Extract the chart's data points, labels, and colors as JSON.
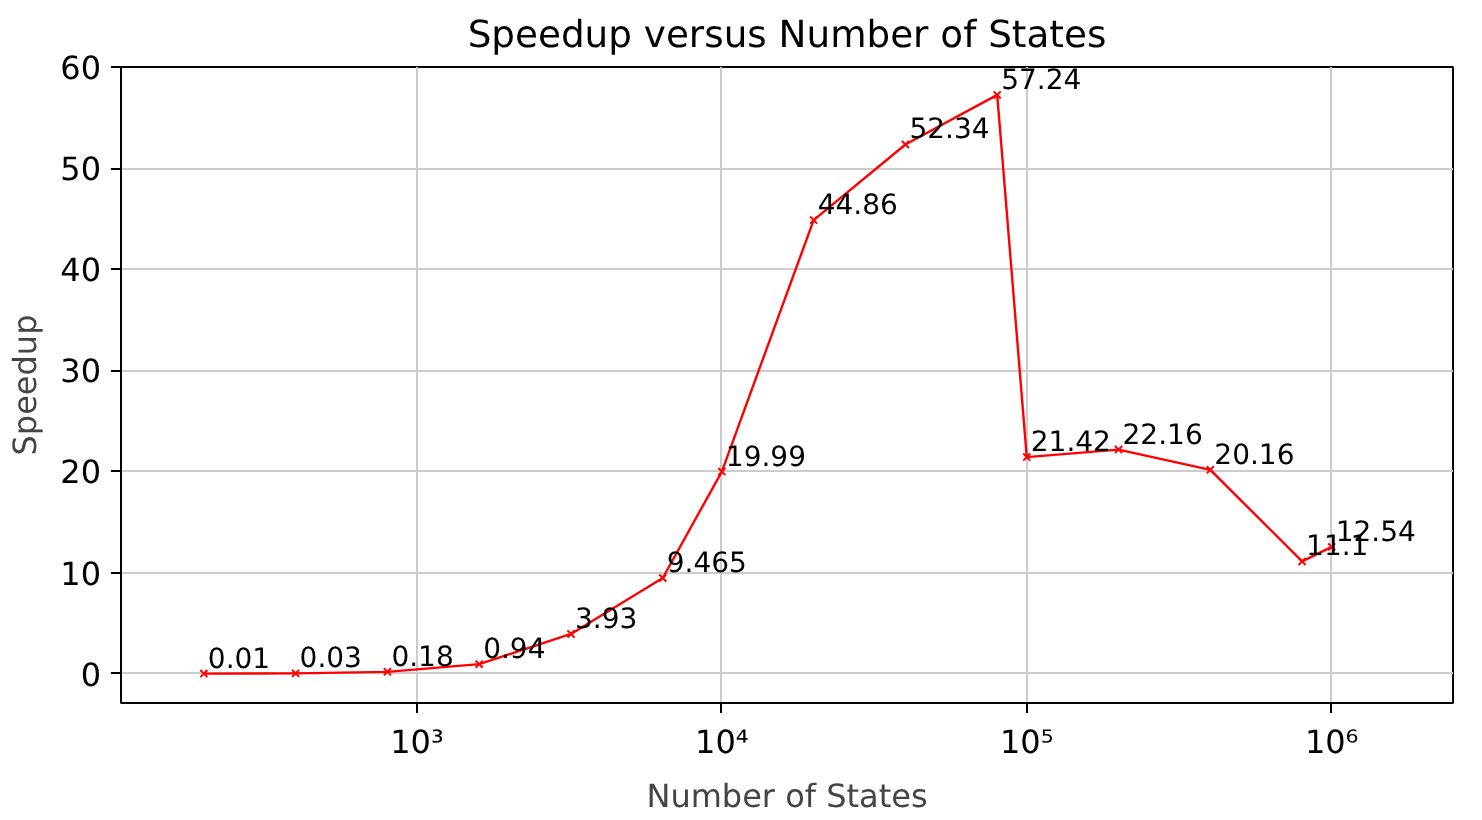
{
  "chart_data": {
    "type": "line",
    "title": "Speedup versus Number of States",
    "xlabel": "Number of States",
    "ylabel": "Speedup",
    "x": [
      200,
      400,
      800,
      1600,
      3200,
      6400,
      10000,
      20000,
      40000,
      80000,
      100000,
      200000,
      400000,
      800000,
      1000000
    ],
    "series": [
      {
        "color": "#ff0000",
        "values": [
          0.01,
          0.03,
          0.18,
          0.94,
          3.93,
          9.465,
          19.99,
          44.86,
          52.34,
          57.24,
          21.42,
          22.16,
          20.16,
          11.1,
          12.54
        ]
      }
    ],
    "log": "x",
    "xlim": [
      107,
      2500000
    ],
    "ylim": [
      -2.9,
      60
    ],
    "xticks": [
      {
        "value": 1000,
        "label": "10³"
      },
      {
        "value": 10000,
        "label": "10⁴"
      },
      {
        "value": 100000,
        "label": "10⁵"
      },
      {
        "value": 1000000,
        "label": "10⁶"
      }
    ],
    "yticks": [
      0,
      10,
      20,
      30,
      40,
      50,
      60
    ],
    "grid": true,
    "marker": "cross",
    "line_style": "solid",
    "data_labels": true
  }
}
